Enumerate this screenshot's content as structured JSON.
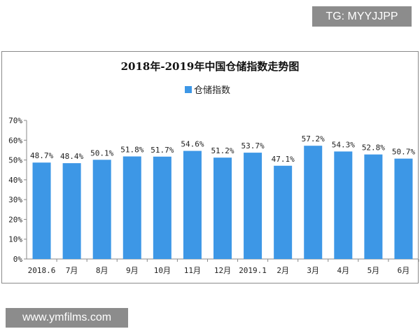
{
  "watermark_tag": "TG: MYYJJPP",
  "watermark_site": "www.ymfilms.com",
  "chart_data": {
    "type": "bar",
    "title": "2018年-2019年中国仓储指数走势图",
    "categories": [
      "2018.6",
      "7月",
      "8月",
      "9月",
      "10月",
      "11月",
      "12月",
      "2019.1",
      "2月",
      "3月",
      "4月",
      "5月",
      "6月"
    ],
    "series": [
      {
        "name": "仓储指数",
        "values": [
          48.7,
          48.4,
          50.1,
          51.8,
          51.7,
          54.6,
          51.2,
          53.7,
          47.1,
          57.2,
          54.3,
          52.8,
          50.7
        ],
        "color": "#3d97e6"
      }
    ],
    "data_labels": [
      "48.7%",
      "48.4%",
      "50.1%",
      "51.8%",
      "51.7%",
      "54.6%",
      "51.2%",
      "53.7%",
      "47.1%",
      "57.2%",
      "54.3%",
      "52.8%",
      "50.7%"
    ],
    "ylim": [
      0,
      70
    ],
    "yticks": [
      "0%",
      "10%",
      "20%",
      "30%",
      "40%",
      "50%",
      "60%",
      "70%"
    ],
    "legend_position": "top",
    "grid": false
  }
}
